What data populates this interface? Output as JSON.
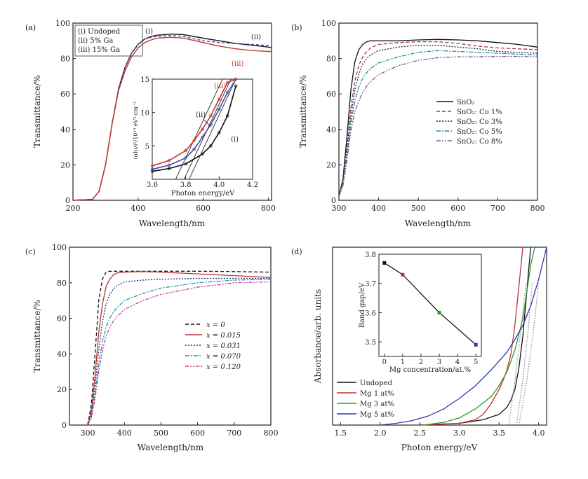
{
  "chart_data": [
    {
      "id": "a",
      "panel_label": "(a)",
      "type": "line",
      "xlabel": "Wavelength/nm",
      "ylabel": "Transmittance/%",
      "xlim": [
        200,
        810
      ],
      "ylim": [
        0,
        100
      ],
      "xticks": [
        200,
        400,
        600,
        800
      ],
      "yticks": [
        0,
        20,
        40,
        60,
        80,
        100
      ],
      "legend": [
        "(i) Undoped",
        "(ii) 5% Ga",
        "(iii) 15% Ga"
      ],
      "series": [
        {
          "name": "(i) Undoped",
          "color": "#111111",
          "dash": "",
          "x": [
            200,
            260,
            280,
            300,
            320,
            340,
            360,
            380,
            400,
            420,
            440,
            460,
            500,
            540,
            600,
            650,
            700,
            750,
            800,
            810
          ],
          "y": [
            0,
            0.5,
            5,
            20,
            43,
            63,
            75,
            83,
            88,
            91,
            92.5,
            93.2,
            93.8,
            93.5,
            91.5,
            90,
            88.5,
            87.5,
            86.5,
            86
          ]
        },
        {
          "name": "(ii) 5% Ga",
          "color": "#3a4fae",
          "dash": "4,3",
          "x": [
            200,
            260,
            280,
            300,
            320,
            340,
            360,
            380,
            400,
            420,
            440,
            460,
            500,
            540,
            600,
            650,
            700,
            750,
            800,
            810
          ],
          "y": [
            0,
            0.5,
            5,
            20,
            43,
            63,
            75,
            83,
            88,
            91,
            92,
            92.5,
            93,
            92.5,
            90,
            89,
            88.5,
            88,
            87.3,
            87
          ]
        },
        {
          "name": "(iii) 15% Ga",
          "color": "#c8342c",
          "dash": "",
          "x": [
            200,
            260,
            280,
            300,
            320,
            340,
            360,
            380,
            400,
            420,
            440,
            460,
            500,
            540,
            600,
            650,
            700,
            750,
            800,
            810
          ],
          "y": [
            0,
            0.5,
            5,
            20,
            43,
            62,
            73,
            81,
            86,
            89,
            90.5,
            91.5,
            92,
            91.5,
            89,
            87,
            85.5,
            84.5,
            84,
            84
          ]
        }
      ],
      "annotations": [
        "(i)",
        "(ii)",
        "(iii)"
      ],
      "inset": {
        "xlabel": "Photon energy/eV",
        "ylabel": "(αhν)²/10¹⁰ eV²·cm⁻²",
        "xlim": [
          3.6,
          4.2
        ],
        "ylim": [
          0,
          15
        ],
        "xticks": [
          3.6,
          3.8,
          4.0,
          4.2
        ],
        "xticklabels": [
          "3.6",
          "3.8",
          "4.0",
          "4.2"
        ],
        "yticks": [
          0,
          5,
          10,
          15
        ],
        "yticklabels": [
          "",
          "5",
          "10",
          "15"
        ],
        "annotations": [
          "(iii)",
          "(ii)",
          "(i)"
        ],
        "series": [
          {
            "name": "(i)",
            "color": "#111111",
            "x": [
              3.6,
              3.7,
              3.8,
              3.9,
              3.95,
              4.0,
              4.05,
              4.1
            ],
            "y": [
              1.2,
              1.6,
              2.3,
              3.8,
              5,
              7,
              9.5,
              14
            ]
          },
          {
            "name": "(ii)",
            "color": "#3a4fae",
            "x": [
              3.6,
              3.7,
              3.8,
              3.85,
              3.9,
              3.95,
              4.0,
              4.05,
              4.1
            ],
            "y": [
              1.5,
              2.1,
              3.2,
              4.5,
              6.3,
              8.2,
              10.5,
              13,
              15
            ]
          },
          {
            "name": "(iii)",
            "color": "#c8342c",
            "x": [
              3.6,
              3.7,
              3.8,
              3.85,
              3.9,
              3.95,
              4.0,
              4.05,
              4.1
            ],
            "y": [
              2,
              2.8,
              4.3,
              5.8,
              7.5,
              9.5,
              12,
              14.5,
              15
            ]
          }
        ],
        "fit_lines": [
          {
            "color": "#111111",
            "x": [
              3.82,
              4.1
            ],
            "y": [
              0,
              15
            ]
          },
          {
            "color": "#111111",
            "x": [
              3.79,
              4.07
            ],
            "y": [
              0,
              15
            ]
          },
          {
            "color": "#111111",
            "x": [
              3.74,
              4.02
            ],
            "y": [
              0,
              15
            ]
          }
        ]
      }
    },
    {
      "id": "b",
      "panel_label": "(b)",
      "type": "line",
      "xlabel": "Wavelength/nm",
      "ylabel": "Transmittance/%",
      "xlim": [
        300,
        800
      ],
      "ylim": [
        0,
        100
      ],
      "xticks": [
        300,
        400,
        500,
        600,
        700,
        800
      ],
      "yticks": [
        0,
        20,
        40,
        60,
        80,
        100
      ],
      "series": [
        {
          "name": "SnO₂",
          "color": "#111111",
          "dash": "",
          "x": [
            300,
            310,
            320,
            330,
            340,
            350,
            360,
            370,
            380,
            390,
            400,
            450,
            500,
            550,
            600,
            650,
            700,
            750,
            800
          ],
          "y": [
            2,
            12,
            35,
            62,
            78,
            85,
            88,
            89.5,
            90,
            90,
            90,
            90,
            90.5,
            90.8,
            90.5,
            90,
            89,
            88,
            86.5
          ]
        },
        {
          "name": "SnO₂: Co 1%",
          "color": "#a03a3a",
          "dash": "5,3",
          "x": [
            300,
            310,
            320,
            330,
            340,
            350,
            360,
            370,
            380,
            390,
            400,
            450,
            500,
            550,
            600,
            650,
            700,
            750,
            800
          ],
          "y": [
            2,
            11,
            30,
            52,
            67,
            76,
            81,
            84,
            86,
            87,
            88,
            89,
            89.5,
            89.5,
            88.5,
            87,
            86,
            85.5,
            85
          ]
        },
        {
          "name": "SnO₂: Co 3%",
          "color": "#1a1a4a",
          "dash": "2,2",
          "x": [
            300,
            310,
            320,
            330,
            340,
            350,
            360,
            370,
            380,
            390,
            400,
            450,
            500,
            550,
            600,
            650,
            700,
            750,
            800
          ],
          "y": [
            2,
            10,
            27,
            47,
            62,
            71,
            77,
            80,
            82,
            83.5,
            84.5,
            86.5,
            87.5,
            87.5,
            86.5,
            85.5,
            84,
            83.5,
            83
          ]
        },
        {
          "name": "SnO₂: Co 5%",
          "color": "#2a8a8a",
          "dash": "6,2,2,2",
          "x": [
            300,
            310,
            320,
            330,
            340,
            350,
            360,
            370,
            380,
            390,
            400,
            450,
            500,
            550,
            600,
            650,
            700,
            750,
            800
          ],
          "y": [
            2,
            9,
            25,
            43,
            56,
            64,
            69,
            72,
            74.5,
            76,
            77.5,
            81,
            83.5,
            84.5,
            84,
            83.5,
            83,
            82.5,
            82
          ]
        },
        {
          "name": "SnO₂: Co 8%",
          "color": "#7a5a9a",
          "dash": "6,2,2,2,2,2",
          "x": [
            300,
            310,
            320,
            330,
            340,
            350,
            360,
            370,
            380,
            390,
            400,
            450,
            500,
            550,
            600,
            650,
            700,
            750,
            800
          ],
          "y": [
            2,
            8,
            22,
            39,
            50,
            56,
            61,
            64.5,
            67,
            69,
            71,
            76,
            79,
            80.5,
            81,
            81,
            81.2,
            81.2,
            81
          ]
        }
      ]
    },
    {
      "id": "c",
      "panel_label": "(c)",
      "type": "line",
      "xlabel": "Wavelength/nm",
      "ylabel": "Transmittance/%",
      "xlim": [
        250,
        800
      ],
      "ylim": [
        0,
        100
      ],
      "xticks": [
        300,
        400,
        500,
        600,
        700,
        800
      ],
      "yticks": [
        0,
        20,
        40,
        60,
        80,
        100
      ],
      "series": [
        {
          "name": "x = 0",
          "color": "#111111",
          "dash": "5,3",
          "x": [
            300,
            310,
            320,
            330,
            340,
            350,
            360,
            370,
            380,
            400,
            500,
            600,
            700,
            800
          ],
          "y": [
            0,
            12,
            40,
            70,
            82,
            86,
            86.5,
            86.5,
            86.5,
            86.5,
            86.5,
            86.5,
            86.3,
            86
          ]
        },
        {
          "name": "x = 0.015",
          "color": "#c03030",
          "dash": "",
          "x": [
            300,
            310,
            320,
            330,
            340,
            350,
            360,
            370,
            380,
            400,
            450,
            500,
            600,
            700,
            800
          ],
          "y": [
            0,
            8,
            28,
            52,
            68,
            78,
            82,
            84.5,
            85.5,
            86,
            86.3,
            86,
            85,
            84,
            83
          ]
        },
        {
          "name": "x = 0.031",
          "color": "#2a2a7a",
          "dash": "2,2",
          "x": [
            300,
            310,
            320,
            330,
            340,
            350,
            360,
            370,
            380,
            400,
            450,
            500,
            600,
            700,
            800
          ],
          "y": [
            0,
            6,
            22,
            42,
            58,
            68,
            73.5,
            76.5,
            78.5,
            80.5,
            81.5,
            82,
            82.5,
            82.5,
            82.5
          ]
        },
        {
          "name": "x = 0.070",
          "color": "#2a9a9a",
          "dash": "6,2,2,2",
          "x": [
            300,
            310,
            320,
            330,
            340,
            350,
            360,
            370,
            380,
            400,
            450,
            500,
            600,
            700,
            800
          ],
          "y": [
            0,
            5,
            18,
            34,
            47,
            55,
            60,
            63.5,
            66,
            70,
            74,
            77,
            80,
            81.5,
            82
          ]
        },
        {
          "name": "x = 0.120",
          "color": "#c03aa0",
          "dash": "5,2,2,2,2,2",
          "x": [
            300,
            310,
            320,
            330,
            340,
            350,
            360,
            370,
            380,
            400,
            450,
            500,
            600,
            700,
            800
          ],
          "y": [
            0,
            4,
            15,
            30,
            42,
            50,
            55,
            58.5,
            61,
            65,
            70,
            73.5,
            77.5,
            80,
            80.5
          ]
        }
      ]
    },
    {
      "id": "d",
      "panel_label": "(d)",
      "type": "line",
      "xlabel": "Photon energy/eV",
      "ylabel": "Absorbance/arb. units",
      "xlim": [
        1.4,
        4.1
      ],
      "ylim": [
        0,
        100
      ],
      "xticks": [
        1.5,
        2.0,
        2.5,
        3.0,
        3.5,
        4.0
      ],
      "xticklabels": [
        "1.5",
        "2.0",
        "2.5",
        "3.0",
        "3.5",
        "4.0"
      ],
      "series": [
        {
          "name": "Undoped",
          "color": "#111111",
          "dash": "",
          "x": [
            2.5,
            3.0,
            3.3,
            3.5,
            3.6,
            3.65,
            3.7,
            3.75,
            3.8,
            3.85,
            3.88,
            3.9
          ],
          "y": [
            0,
            1,
            3,
            6,
            10,
            14,
            20,
            32,
            50,
            75,
            90,
            100
          ]
        },
        {
          "name": "Mg 1 at%",
          "color": "#c03030",
          "dash": "",
          "x": [
            2.5,
            3.0,
            3.2,
            3.3,
            3.4,
            3.5,
            3.55,
            3.6,
            3.65,
            3.7,
            3.75,
            3.8
          ],
          "y": [
            0,
            1,
            3,
            6,
            12,
            20,
            25,
            31,
            40,
            56,
            78,
            100
          ]
        },
        {
          "name": "Mg 3 at%",
          "color": "#2a9a2a",
          "dash": "",
          "x": [
            2.55,
            2.8,
            3.0,
            3.2,
            3.4,
            3.5,
            3.6,
            3.7,
            3.8,
            3.85,
            3.9,
            3.95
          ],
          "y": [
            0,
            1.5,
            4,
            9,
            16,
            22,
            30,
            42,
            60,
            75,
            90,
            100
          ]
        },
        {
          "name": "Mg 5 at%",
          "color": "#2a3ab0",
          "dash": "",
          "x": [
            2.0,
            2.2,
            2.4,
            2.6,
            2.8,
            3.0,
            3.2,
            3.4,
            3.6,
            3.7,
            3.8,
            3.9,
            4.0,
            4.05,
            4.1
          ],
          "y": [
            0,
            1,
            2.5,
            5,
            9,
            15,
            22,
            31,
            41,
            48,
            56,
            67,
            82,
            91,
            100
          ]
        },
        {
          "name": "",
          "color": "#888888",
          "dash": "1.5,2",
          "x": [
            3.72,
            3.8,
            3.87,
            3.92
          ],
          "y": [
            0,
            25,
            55,
            80
          ]
        },
        {
          "name": "",
          "color": "#888888",
          "dash": "1.5,2",
          "x": [
            3.62,
            3.7,
            3.78,
            3.84
          ],
          "y": [
            0,
            25,
            55,
            80
          ]
        },
        {
          "name": "",
          "color": "#888888",
          "dash": "1.5,2",
          "x": [
            3.75,
            3.85,
            3.94,
            4.0
          ],
          "y": [
            0,
            25,
            55,
            80
          ]
        }
      ],
      "inset": {
        "xlabel": "Mg concentration/at.%",
        "ylabel": "Band gap/eV",
        "xlim": [
          -0.3,
          5.3
        ],
        "ylim": [
          3.45,
          3.8
        ],
        "xticks": [
          0,
          1,
          2,
          3,
          4,
          5
        ],
        "xticklabels": [
          "0",
          "1",
          "2",
          "3",
          "4",
          "5"
        ],
        "yticks": [
          3.5,
          3.6,
          3.7,
          3.8
        ],
        "yticklabels": [
          "3.5",
          "3.6",
          "3.7",
          "3.8"
        ],
        "x": [
          0,
          1,
          3,
          5
        ],
        "y": [
          3.77,
          3.73,
          3.6,
          3.49
        ],
        "point_colors": [
          "#111111",
          "#c03030",
          "#2a9a2a",
          "#2a3ab0"
        ]
      }
    }
  ]
}
